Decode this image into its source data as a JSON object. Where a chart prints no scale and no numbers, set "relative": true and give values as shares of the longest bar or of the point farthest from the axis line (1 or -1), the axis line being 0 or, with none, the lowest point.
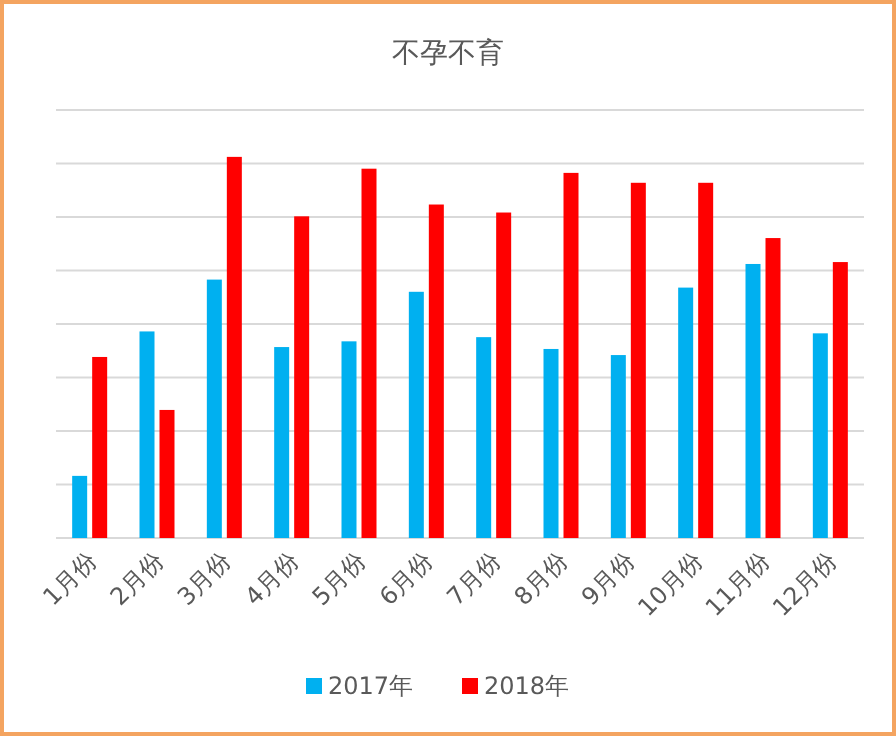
{
  "chart_data": {
    "type": "bar",
    "title": "不孕不育",
    "relative": true,
    "grid": "y",
    "legend": "bottom",
    "categories": [
      "1月份",
      "2月份",
      "3月份",
      "4月份",
      "5月份",
      "6月份",
      "7月份",
      "8月份",
      "9月份",
      "10月份",
      "11月份",
      "12月份"
    ],
    "series": [
      {
        "name": "2017年",
        "color": "#00b0f0",
        "values": [
          0.163,
          0.542,
          0.678,
          0.501,
          0.516,
          0.646,
          0.527,
          0.496,
          0.48,
          0.657,
          0.719,
          0.537
        ]
      },
      {
        "name": "2018年",
        "color": "#ff0000",
        "values": [
          0.475,
          0.336,
          1,
          0.844,
          0.969,
          0.875,
          0.854,
          0.958,
          0.932,
          0.932,
          0.787,
          0.724
        ]
      }
    ]
  }
}
